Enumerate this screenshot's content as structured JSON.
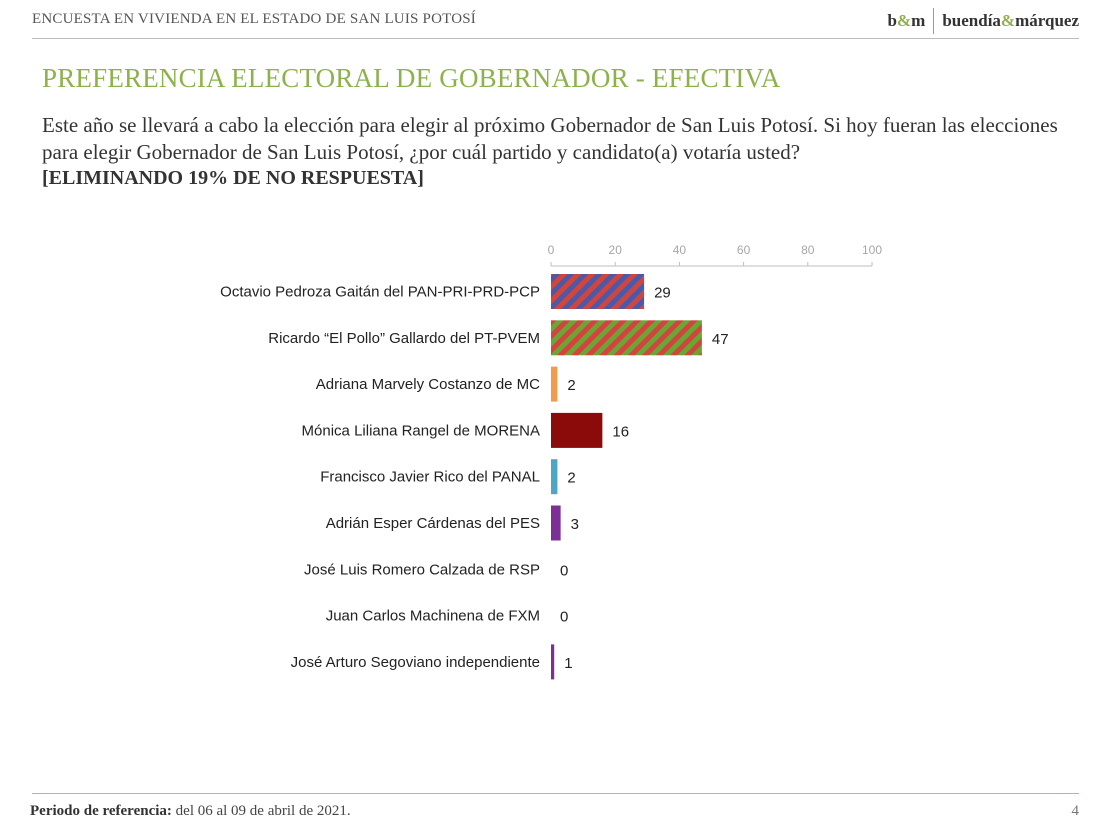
{
  "header": {
    "survey_title": "ENCUESTA EN VIVIENDA EN EL ESTADO DE SAN LUIS POTOSÍ",
    "logo_short_a": "b",
    "logo_short_amp": "&",
    "logo_short_b": "m",
    "logo_name_a": "buendía",
    "logo_name_amp": "&",
    "logo_name_b": "márquez"
  },
  "slide": {
    "title": "PREFERENCIA ELECTORAL DE GOBERNADOR - EFECTIVA",
    "question": "Este año se llevará a cabo la elección para elegir al próximo Gobernador de San Luis Potosí. Si hoy fueran las elecciones para elegir Gobernador de San Luis Potosí, ¿por cuál partido y candidato(a) votaría usted?",
    "note": "[ELIMINANDO 19% DE NO RESPUESTA]"
  },
  "chart_data": {
    "type": "bar",
    "orientation": "horizontal",
    "axis_position": "top",
    "xlim": [
      0,
      100
    ],
    "ticks": [
      0,
      20,
      40,
      60,
      80,
      100
    ],
    "grid": false,
    "categories": [
      "Octavio Pedroza Gaitán del PAN-PRI-PRD-PCP",
      "Ricardo “El Pollo” Gallardo del PT-PVEM",
      "Adriana Marvely Costanzo de MC",
      "Mónica Liliana Rangel de MORENA",
      "Francisco Javier Rico del PANAL",
      "Adrián Esper Cárdenas del PES",
      "José Luis Romero Calzada de RSP",
      "Juan Carlos Machinena de FXM",
      "José Arturo Segoviano independiente"
    ],
    "values": [
      29,
      47,
      2,
      16,
      2,
      3,
      0,
      0,
      1
    ],
    "bar_styles": [
      {
        "pattern": "stripes",
        "colors": [
          "#4a5aa8",
          "#d2453f"
        ]
      },
      {
        "pattern": "stripes",
        "colors": [
          "#d2453f",
          "#6aa536"
        ]
      },
      {
        "pattern": "solid",
        "colors": [
          "#f39a4e"
        ]
      },
      {
        "pattern": "solid",
        "colors": [
          "#8b0a0a"
        ]
      },
      {
        "pattern": "solid",
        "colors": [
          "#4ca6c4"
        ]
      },
      {
        "pattern": "solid",
        "colors": [
          "#7b2f97"
        ]
      },
      {
        "pattern": "solid",
        "colors": [
          "#999999"
        ]
      },
      {
        "pattern": "solid",
        "colors": [
          "#999999"
        ]
      },
      {
        "pattern": "solid",
        "colors": [
          "#7b2f97"
        ]
      }
    ]
  },
  "footer": {
    "reference_label": "Periodo de referencia:",
    "reference_text": " del 06 al 09 de abril de 2021.",
    "page_number": "4"
  },
  "colors": {
    "accent_green": "#8db24b",
    "axis": "#bfbfbf"
  }
}
